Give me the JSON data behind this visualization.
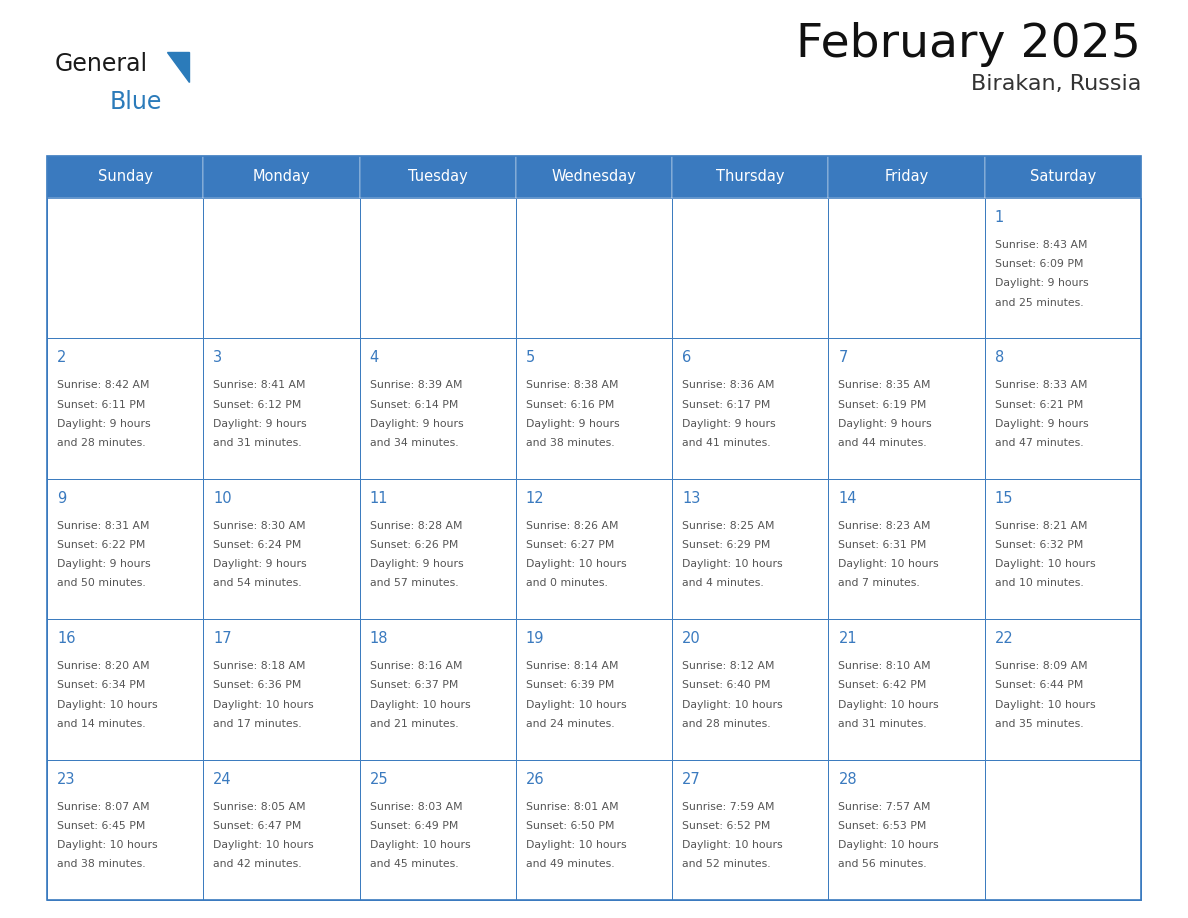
{
  "title": "February 2025",
  "subtitle": "Birakan, Russia",
  "header_color": "#3a7abf",
  "header_text_color": "#ffffff",
  "day_names": [
    "Sunday",
    "Monday",
    "Tuesday",
    "Wednesday",
    "Thursday",
    "Friday",
    "Saturday"
  ],
  "cell_bg_color": "#ffffff",
  "cell_border_color": "#3a7abf",
  "day_number_color": "#3a7abf",
  "text_color": "#555555",
  "logo_general_color": "#1a1a1a",
  "logo_blue_color": "#2b7bba",
  "weeks": [
    [
      {
        "day": null,
        "sunrise": null,
        "sunset": null,
        "daylight": null
      },
      {
        "day": null,
        "sunrise": null,
        "sunset": null,
        "daylight": null
      },
      {
        "day": null,
        "sunrise": null,
        "sunset": null,
        "daylight": null
      },
      {
        "day": null,
        "sunrise": null,
        "sunset": null,
        "daylight": null
      },
      {
        "day": null,
        "sunrise": null,
        "sunset": null,
        "daylight": null
      },
      {
        "day": null,
        "sunrise": null,
        "sunset": null,
        "daylight": null
      },
      {
        "day": 1,
        "sunrise": "8:43 AM",
        "sunset": "6:09 PM",
        "daylight_line1": "9 hours",
        "daylight_line2": "and 25 minutes."
      }
    ],
    [
      {
        "day": 2,
        "sunrise": "8:42 AM",
        "sunset": "6:11 PM",
        "daylight_line1": "9 hours",
        "daylight_line2": "and 28 minutes."
      },
      {
        "day": 3,
        "sunrise": "8:41 AM",
        "sunset": "6:12 PM",
        "daylight_line1": "9 hours",
        "daylight_line2": "and 31 minutes."
      },
      {
        "day": 4,
        "sunrise": "8:39 AM",
        "sunset": "6:14 PM",
        "daylight_line1": "9 hours",
        "daylight_line2": "and 34 minutes."
      },
      {
        "day": 5,
        "sunrise": "8:38 AM",
        "sunset": "6:16 PM",
        "daylight_line1": "9 hours",
        "daylight_line2": "and 38 minutes."
      },
      {
        "day": 6,
        "sunrise": "8:36 AM",
        "sunset": "6:17 PM",
        "daylight_line1": "9 hours",
        "daylight_line2": "and 41 minutes."
      },
      {
        "day": 7,
        "sunrise": "8:35 AM",
        "sunset": "6:19 PM",
        "daylight_line1": "9 hours",
        "daylight_line2": "and 44 minutes."
      },
      {
        "day": 8,
        "sunrise": "8:33 AM",
        "sunset": "6:21 PM",
        "daylight_line1": "9 hours",
        "daylight_line2": "and 47 minutes."
      }
    ],
    [
      {
        "day": 9,
        "sunrise": "8:31 AM",
        "sunset": "6:22 PM",
        "daylight_line1": "9 hours",
        "daylight_line2": "and 50 minutes."
      },
      {
        "day": 10,
        "sunrise": "8:30 AM",
        "sunset": "6:24 PM",
        "daylight_line1": "9 hours",
        "daylight_line2": "and 54 minutes."
      },
      {
        "day": 11,
        "sunrise": "8:28 AM",
        "sunset": "6:26 PM",
        "daylight_line1": "9 hours",
        "daylight_line2": "and 57 minutes."
      },
      {
        "day": 12,
        "sunrise": "8:26 AM",
        "sunset": "6:27 PM",
        "daylight_line1": "10 hours",
        "daylight_line2": "and 0 minutes."
      },
      {
        "day": 13,
        "sunrise": "8:25 AM",
        "sunset": "6:29 PM",
        "daylight_line1": "10 hours",
        "daylight_line2": "and 4 minutes."
      },
      {
        "day": 14,
        "sunrise": "8:23 AM",
        "sunset": "6:31 PM",
        "daylight_line1": "10 hours",
        "daylight_line2": "and 7 minutes."
      },
      {
        "day": 15,
        "sunrise": "8:21 AM",
        "sunset": "6:32 PM",
        "daylight_line1": "10 hours",
        "daylight_line2": "and 10 minutes."
      }
    ],
    [
      {
        "day": 16,
        "sunrise": "8:20 AM",
        "sunset": "6:34 PM",
        "daylight_line1": "10 hours",
        "daylight_line2": "and 14 minutes."
      },
      {
        "day": 17,
        "sunrise": "8:18 AM",
        "sunset": "6:36 PM",
        "daylight_line1": "10 hours",
        "daylight_line2": "and 17 minutes."
      },
      {
        "day": 18,
        "sunrise": "8:16 AM",
        "sunset": "6:37 PM",
        "daylight_line1": "10 hours",
        "daylight_line2": "and 21 minutes."
      },
      {
        "day": 19,
        "sunrise": "8:14 AM",
        "sunset": "6:39 PM",
        "daylight_line1": "10 hours",
        "daylight_line2": "and 24 minutes."
      },
      {
        "day": 20,
        "sunrise": "8:12 AM",
        "sunset": "6:40 PM",
        "daylight_line1": "10 hours",
        "daylight_line2": "and 28 minutes."
      },
      {
        "day": 21,
        "sunrise": "8:10 AM",
        "sunset": "6:42 PM",
        "daylight_line1": "10 hours",
        "daylight_line2": "and 31 minutes."
      },
      {
        "day": 22,
        "sunrise": "8:09 AM",
        "sunset": "6:44 PM",
        "daylight_line1": "10 hours",
        "daylight_line2": "and 35 minutes."
      }
    ],
    [
      {
        "day": 23,
        "sunrise": "8:07 AM",
        "sunset": "6:45 PM",
        "daylight_line1": "10 hours",
        "daylight_line2": "and 38 minutes."
      },
      {
        "day": 24,
        "sunrise": "8:05 AM",
        "sunset": "6:47 PM",
        "daylight_line1": "10 hours",
        "daylight_line2": "and 42 minutes."
      },
      {
        "day": 25,
        "sunrise": "8:03 AM",
        "sunset": "6:49 PM",
        "daylight_line1": "10 hours",
        "daylight_line2": "and 45 minutes."
      },
      {
        "day": 26,
        "sunrise": "8:01 AM",
        "sunset": "6:50 PM",
        "daylight_line1": "10 hours",
        "daylight_line2": "and 49 minutes."
      },
      {
        "day": 27,
        "sunrise": "7:59 AM",
        "sunset": "6:52 PM",
        "daylight_line1": "10 hours",
        "daylight_line2": "and 52 minutes."
      },
      {
        "day": 28,
        "sunrise": "7:57 AM",
        "sunset": "6:53 PM",
        "daylight_line1": "10 hours",
        "daylight_line2": "and 56 minutes."
      },
      {
        "day": null,
        "sunrise": null,
        "sunset": null,
        "daylight_line1": null,
        "daylight_line2": null
      }
    ]
  ]
}
